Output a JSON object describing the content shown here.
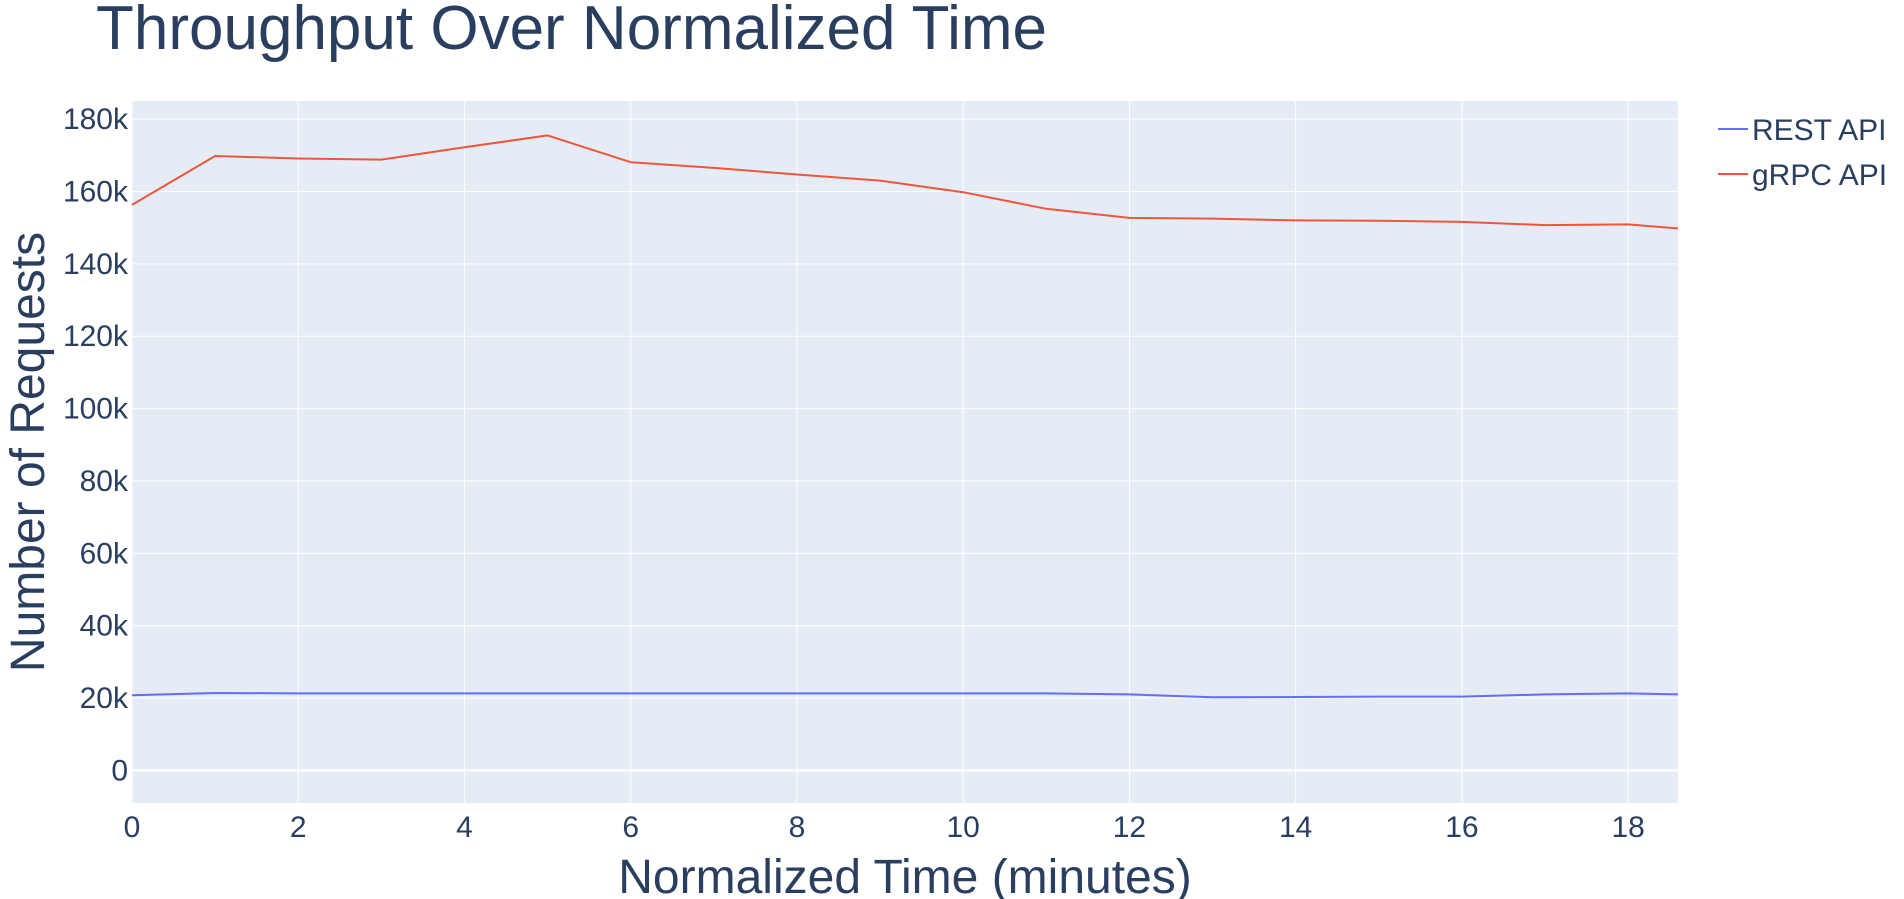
{
  "chart_data": {
    "type": "line",
    "title": "Throughput Over Normalized Time",
    "xlabel": "Normalized Time (minutes)",
    "ylabel": "Number of Requests",
    "x": [
      0,
      1,
      2,
      3,
      4,
      5,
      6,
      7,
      8,
      9,
      10,
      11,
      12,
      13,
      14,
      15,
      16,
      17,
      18,
      18.6
    ],
    "series": [
      {
        "name": "REST API",
        "color": "#636efa",
        "values": [
          20800,
          21400,
          21300,
          21300,
          21300,
          21300,
          21300,
          21300,
          21300,
          21300,
          21300,
          21300,
          21000,
          20200,
          20300,
          20400,
          20400,
          21000,
          21300,
          21000
        ]
      },
      {
        "name": "gRPC API",
        "color": "#ef553b",
        "values": [
          156300,
          169800,
          169100,
          168800,
          172200,
          175500,
          168100,
          166500,
          164700,
          163000,
          159800,
          155200,
          152700,
          152500,
          152000,
          151900,
          151600,
          150700,
          150900,
          149800
        ]
      }
    ],
    "xticks": [
      "0",
      "2",
      "4",
      "6",
      "8",
      "10",
      "12",
      "14",
      "16",
      "18"
    ],
    "xtick_values": [
      0,
      2,
      4,
      6,
      8,
      10,
      12,
      14,
      16,
      18
    ],
    "yticks": [
      "0",
      "20k",
      "40k",
      "60k",
      "80k",
      "100k",
      "120k",
      "140k",
      "160k",
      "180k"
    ],
    "ytick_values": [
      0,
      20000,
      40000,
      60000,
      80000,
      100000,
      120000,
      140000,
      160000,
      180000
    ],
    "xlim": [
      0,
      18.6
    ],
    "ylim": [
      -9000,
      185000
    ],
    "grid": true,
    "legend_position": "top-right",
    "plot_bgcolor": "#e5ecf6",
    "text_color": "#2a3f5f",
    "grid_color": "#ffffff"
  }
}
